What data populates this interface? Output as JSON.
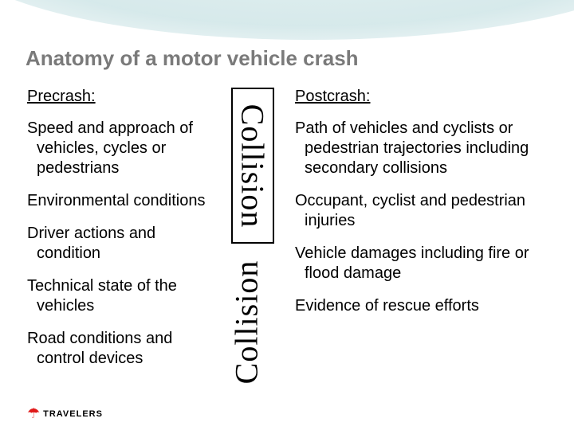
{
  "title": "Anatomy of a motor vehicle crash",
  "precrash": {
    "heading": "Precrash:",
    "items": [
      "Speed and approach of vehicles, cycles or pedestrians",
      "Environmental conditions",
      "Driver actions and condition",
      "Technical state of the vehicles",
      "Road conditions and control devices"
    ]
  },
  "collision": {
    "label_top": "Collision",
    "label_bottom": "Collision"
  },
  "postcrash": {
    "heading": "Postcrash:",
    "items": [
      "Path of vehicles and cyclists or pedestrian trajectories including secondary collisions",
      "Occupant, cyclist and pedestrian injuries",
      "Vehicle damages including fire or flood damage",
      "Evidence of rescue efforts"
    ]
  },
  "logo": {
    "brand": "TRAVELERS",
    "icon": "☂"
  },
  "colors": {
    "title": "#7a7a7a",
    "text": "#000000",
    "accent_red": "#e01a1a",
    "arc": "#c5e0e2"
  }
}
